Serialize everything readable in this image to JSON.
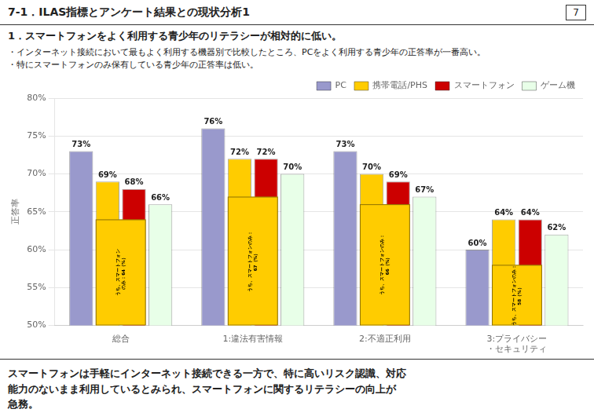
{
  "chart_data": {
    "type": "bar",
    "title": "7-1．ILAS指標とアンケート結果との現状分析1",
    "page_num": "7",
    "subtitle": "1．スマートフォンをよく利用する青少年のリテラシーが相対的に低い。",
    "notes": [
      "・インターネット接続において最もよく利用する機器別で比較したところ、PCをよく利用する青少年の正答率が一番高い。",
      "・特にスマートフォンのみ保有している青少年の正答率は低い。"
    ],
    "footer": "スマートフォンは手軽にインターネット接続できる一方で、特に高いリスク認識、対応\n能力のないまま利用しているとみられ、スマートフォンに関するリテラシーの向上が\n急務。",
    "ylabel": "正答率",
    "categories": [
      "総合",
      "1:違法有害情報",
      "2:不適正利用",
      "3:プライバシー\n・セキュリティ"
    ],
    "series": [
      {
        "name": "PC",
        "color": "#9999cc",
        "values": [
          73,
          76,
          73,
          60
        ],
        "value_labels": [
          "73%",
          "76%",
          "73%",
          "60%"
        ]
      },
      {
        "name": "携帯電話/PHS",
        "color": "#ffcc00",
        "values": [
          69,
          72,
          70,
          64
        ],
        "value_labels": [
          "69%",
          "72%",
          "70%",
          "64%"
        ]
      },
      {
        "name": "スマートフォン",
        "color": "#cc0000",
        "values": [
          68,
          72,
          69,
          64
        ],
        "value_labels": [
          "68%",
          "72%",
          "69%",
          "64%"
        ]
      },
      {
        "name": "ゲーム機",
        "color": "#e8ffe8",
        "values": [
          66,
          70,
          67,
          62
        ],
        "value_labels": [
          "66%",
          "70%",
          "67%",
          "62%"
        ]
      }
    ],
    "annotations": [
      {
        "category": "総合",
        "over": [
          "携帯電話/PHS",
          "スマートフォン"
        ],
        "value": 64,
        "text": "うち、スマートフォン\nのみ：64（%）"
      },
      {
        "category": "1:違法有害情報",
        "over": [
          "携帯電話/PHS",
          "スマートフォン"
        ],
        "value": 67,
        "text": "うち、スマートフォンのみ：\n67（%）"
      },
      {
        "category": "2:不適正利用",
        "over": [
          "携帯電話/PHS",
          "スマートフォン"
        ],
        "value": 66,
        "text": "うち、スマートフォンのみ：\n66（%）"
      },
      {
        "category": "3:プライバシー\n・セキュリティ",
        "over": [
          "携帯電話/PHS",
          "スマートフォン"
        ],
        "value": 58,
        "text": "うち、スマートフォンのみ：\n58（%）"
      }
    ],
    "ylim": [
      50,
      80
    ],
    "yticks": [
      {
        "value": 50,
        "label": "50%"
      },
      {
        "value": 55,
        "label": "55%"
      },
      {
        "value": 60,
        "label": "60%"
      },
      {
        "value": 65,
        "label": "65%"
      },
      {
        "value": 70,
        "label": "70%"
      },
      {
        "value": 75,
        "label": "75%"
      },
      {
        "value": 80,
        "label": "80%"
      }
    ],
    "grid": "y",
    "legend": "upper right",
    "data_labels": true
  }
}
